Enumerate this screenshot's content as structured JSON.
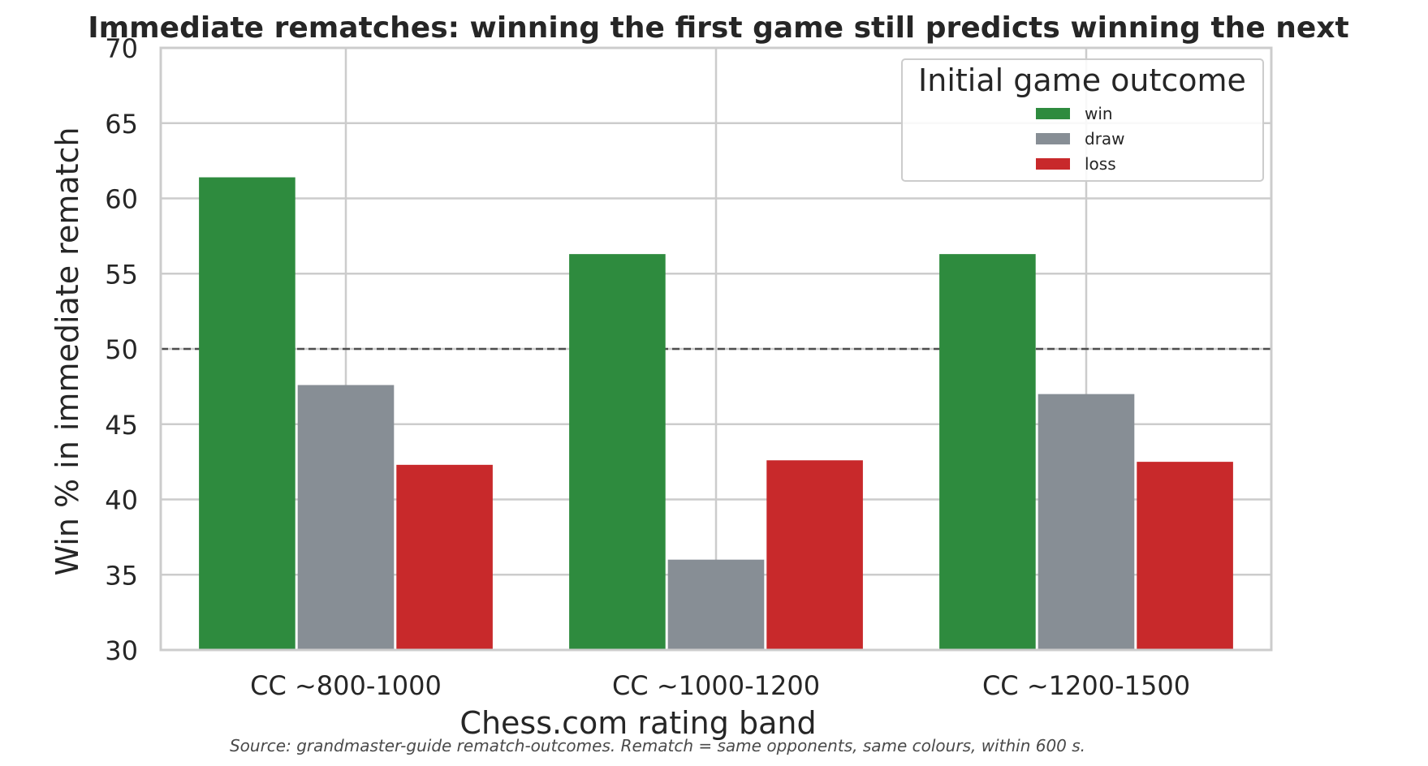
{
  "chart_data": {
    "type": "bar",
    "title": "Immediate rematches: winning the first game still predicts winning the next",
    "xlabel": "Chess.com rating band",
    "ylabel": "Win % in immediate rematch",
    "categories": [
      "CC ~800-1000",
      "CC ~1000-1200",
      "CC ~1200-1500"
    ],
    "series": [
      {
        "name": "win",
        "values": [
          61.4,
          56.3,
          56.3
        ],
        "color": "#2e8b3e"
      },
      {
        "name": "draw",
        "values": [
          47.6,
          36.0,
          47.0
        ],
        "color": "#878e95"
      },
      {
        "name": "loss",
        "values": [
          42.3,
          42.6,
          42.5
        ],
        "color": "#c8292b"
      }
    ],
    "ylim": [
      30,
      70
    ],
    "yticks": [
      30,
      35,
      40,
      45,
      50,
      55,
      60,
      65,
      70
    ],
    "reference_line": {
      "y": 50,
      "style": "dashed",
      "color": "#4d4d4d"
    },
    "grid": true,
    "legend": {
      "title": "Initial game outcome",
      "placement": "upper-right"
    },
    "source_note": "Source: grandmaster-guide rematch-outcomes. Rematch = same opponents, same colours, within 600 s."
  }
}
